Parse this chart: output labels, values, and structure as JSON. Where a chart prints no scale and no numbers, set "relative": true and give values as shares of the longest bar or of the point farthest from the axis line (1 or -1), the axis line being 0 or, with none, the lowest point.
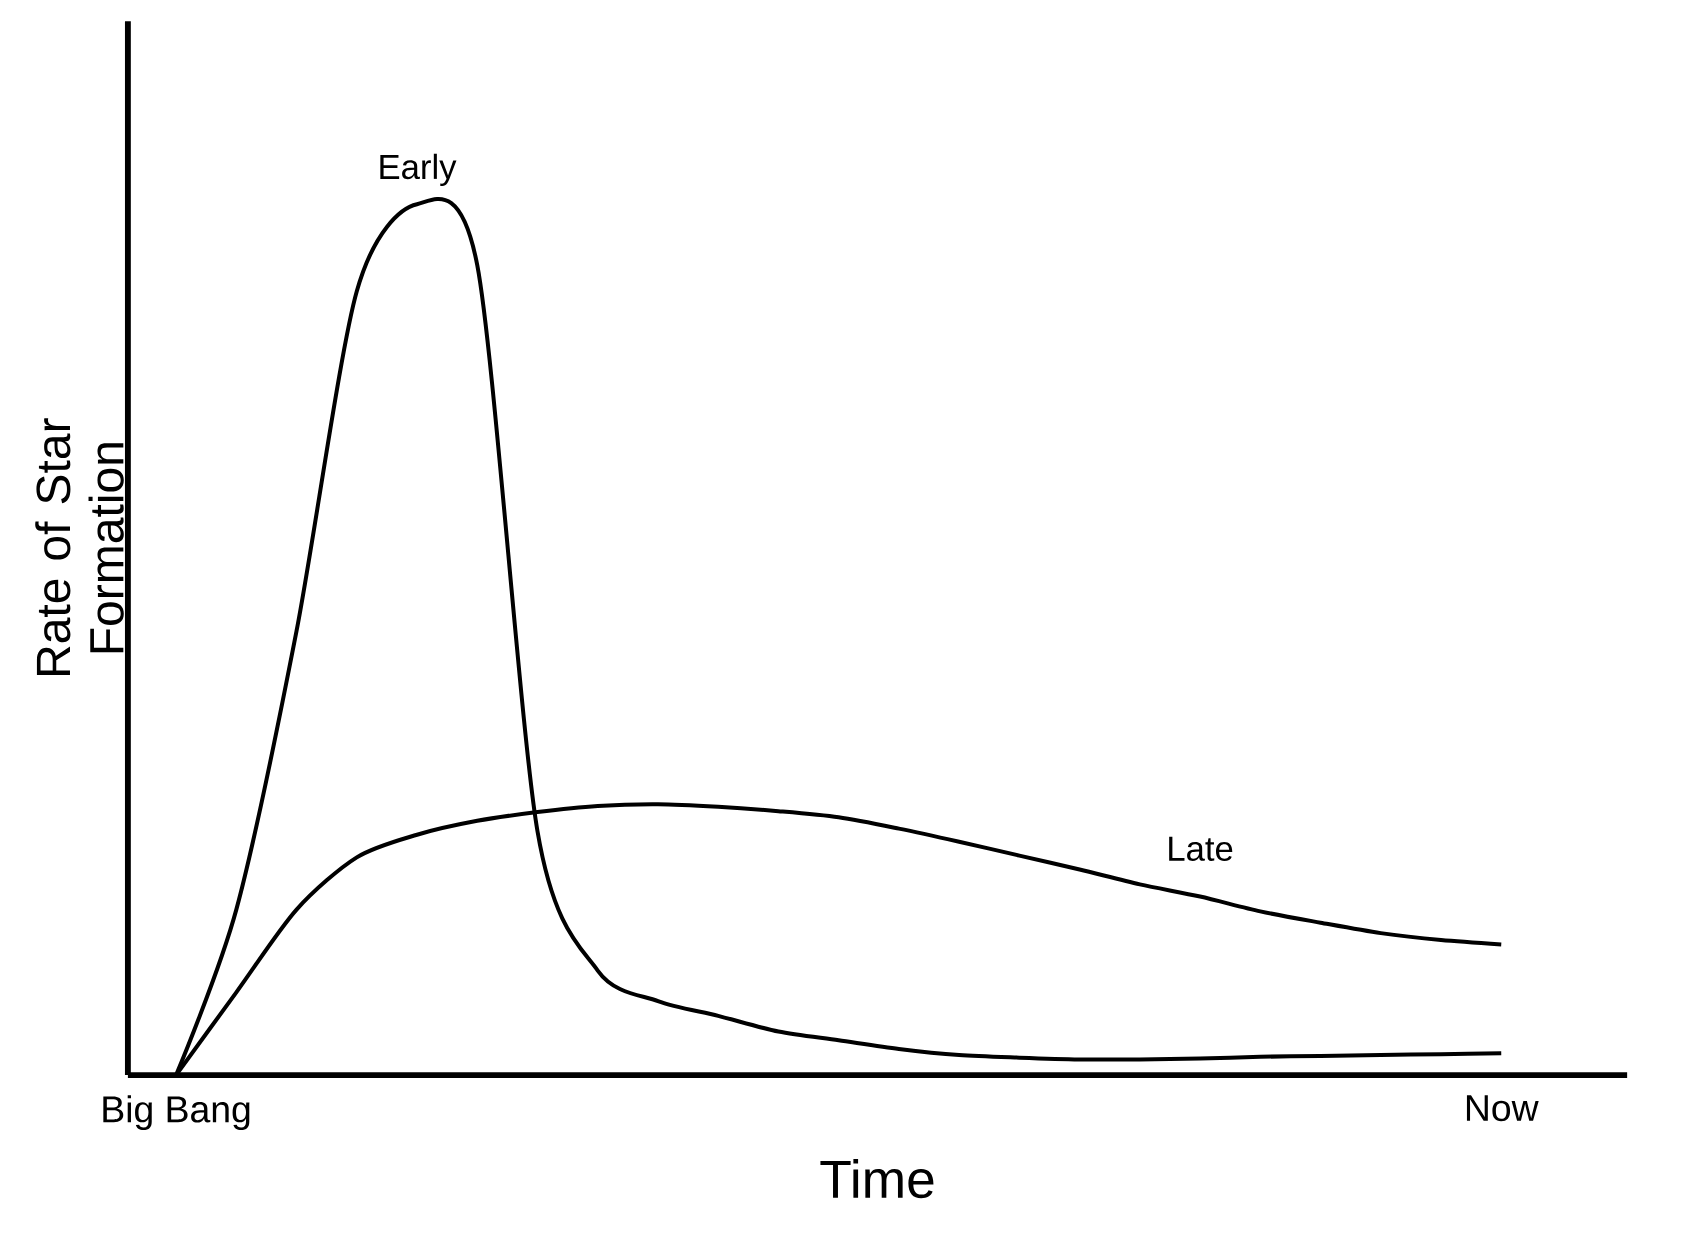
{
  "chart_data": {
    "type": "line",
    "relative": true,
    "xlabel": "Time",
    "ylabel": "Rate of Star Formation",
    "categories": [
      "Big Bang",
      null,
      null,
      null,
      null,
      null,
      null,
      null,
      null,
      null,
      null,
      null,
      null,
      null,
      null,
      null,
      null,
      null,
      null,
      null,
      null,
      null,
      "Now"
    ],
    "series": [
      {
        "name": "Early",
        "color": "#000000",
        "values": [
          0,
          0.19,
          0.51,
          0.9,
          1,
          0.93,
          0.28,
          0.12,
          0.085,
          0.068,
          0.05,
          0.04,
          0.03,
          0.023,
          0.02,
          0.018,
          0.018,
          0.019,
          0.021,
          0.022,
          0.023,
          0.024,
          0.025
        ]
      },
      {
        "name": "Late",
        "color": "#000000",
        "values": [
          0,
          0.095,
          0.19,
          0.25,
          0.276,
          0.292,
          0.302,
          0.309,
          0.311,
          0.308,
          0.303,
          0.296,
          0.283,
          0.268,
          0.252,
          0.236,
          0.219,
          0.205,
          0.188,
          0.175,
          0.163,
          0.155,
          0.15
        ]
      }
    ],
    "line_style": "solid",
    "marker": "none"
  }
}
